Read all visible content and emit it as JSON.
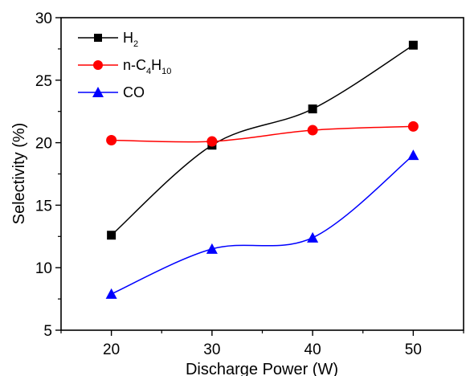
{
  "chart_data": {
    "type": "scatter",
    "xlabel": "Discharge Power (W)",
    "ylabel": "Selectivity (%)",
    "xlim": [
      15,
      55
    ],
    "ylim": [
      5,
      30
    ],
    "x_ticks": [
      20,
      30,
      40,
      50
    ],
    "y_ticks": [
      5,
      10,
      15,
      20,
      25,
      30
    ],
    "x_tick_labels": [
      "20",
      "30",
      "40",
      "50"
    ],
    "y_tick_labels": [
      "5",
      "10",
      "15",
      "20",
      "25",
      "30"
    ],
    "grid": false,
    "legend_position": "top-left",
    "fit_lines": "smooth curves through points",
    "series": [
      {
        "name": "H2",
        "legend_main": "H",
        "legend_sub": "2",
        "marker": "square",
        "color": "#000000",
        "x": [
          20,
          30,
          40,
          50
        ],
        "y": [
          12.6,
          19.8,
          22.7,
          27.8
        ]
      },
      {
        "name": "n-C4H10",
        "legend_parts": [
          "n-C",
          "4",
          "H",
          "10"
        ],
        "marker": "circle",
        "color": "#ff0000",
        "x": [
          20,
          30,
          40,
          50
        ],
        "y": [
          20.2,
          20.1,
          21.0,
          21.3
        ]
      },
      {
        "name": "CO",
        "legend_main": "CO",
        "marker": "triangle",
        "color": "#0000ff",
        "x": [
          20,
          30,
          40,
          50
        ],
        "y": [
          7.9,
          11.5,
          12.4,
          19.0
        ]
      }
    ]
  }
}
